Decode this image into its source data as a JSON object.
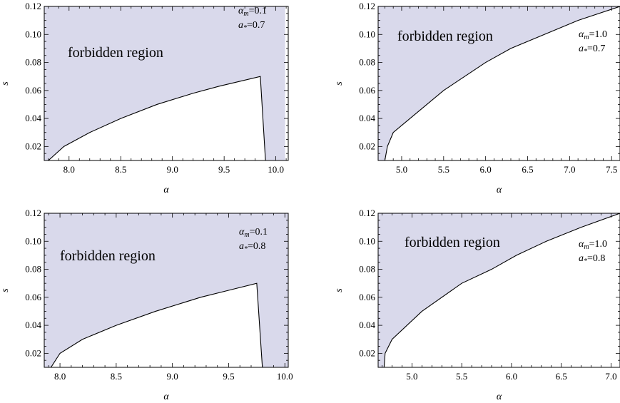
{
  "chart_data": [
    {
      "type": "area",
      "title": "",
      "xlabel": "α",
      "ylabel": "s",
      "xlim": [
        7.76,
        10.12
      ],
      "ylim": [
        0.01,
        0.12
      ],
      "x_ticks": [
        8.0,
        8.5,
        9.0,
        9.5,
        10.0
      ],
      "x_tick_labels": [
        "8.0",
        "8.5",
        "9.0",
        "9.5",
        "10.0"
      ],
      "y_ticks": [
        0.02,
        0.04,
        0.06,
        0.08,
        0.1,
        0.12
      ],
      "y_tick_labels": [
        "0.02",
        "0.04",
        "0.06",
        "0.08",
        "0.10",
        "0.12"
      ],
      "region_label": "forbidden region",
      "params": [
        "α_m=0.1",
        "a_*=0.7"
      ],
      "params_display": [
        {
          "sym": "α",
          "sub": "m",
          "val": "=0.1"
        },
        {
          "sym": "a",
          "sub": "*",
          "val": "=0.7"
        }
      ],
      "fill_color": "#d9d9eb",
      "boundary": {
        "x": [
          7.8,
          7.95,
          8.2,
          8.5,
          8.85,
          9.2,
          9.45,
          9.85,
          9.9
        ],
        "y": [
          0.01,
          0.02,
          0.03,
          0.04,
          0.05,
          0.058,
          0.063,
          0.07,
          0.01
        ]
      },
      "allowed_x_range": [
        7.8,
        9.9
      ],
      "grid": false,
      "legend": "none"
    },
    {
      "type": "area",
      "title": "",
      "xlabel": "α",
      "ylabel": "s",
      "xlim": [
        4.72,
        7.6
      ],
      "ylim": [
        0.01,
        0.12
      ],
      "x_ticks": [
        5.0,
        5.5,
        6.0,
        6.5,
        7.0,
        7.5
      ],
      "x_tick_labels": [
        "5.0",
        "5.5",
        "6.0",
        "6.5",
        "7.0",
        "7.5"
      ],
      "y_ticks": [
        0.02,
        0.04,
        0.06,
        0.08,
        0.1,
        0.12
      ],
      "y_tick_labels": [
        "0.02",
        "0.04",
        "0.06",
        "0.08",
        "0.10",
        "0.12"
      ],
      "region_label": "forbidden region",
      "params": [
        "α_m=1.0",
        "a_*=0.7"
      ],
      "params_display": [
        {
          "sym": "α",
          "sub": "m",
          "val": "=1.0"
        },
        {
          "sym": "a",
          "sub": "*",
          "val": "=0.7"
        }
      ],
      "fill_color": "#d9d9eb",
      "boundary": {
        "x": [
          4.8,
          4.83,
          4.9,
          5.1,
          5.3,
          5.5,
          5.75,
          6.0,
          6.3,
          6.7,
          7.1,
          7.6
        ],
        "y": [
          0.01,
          0.02,
          0.03,
          0.04,
          0.05,
          0.06,
          0.07,
          0.08,
          0.09,
          0.1,
          0.11,
          0.12
        ]
      },
      "allowed_x_range": [
        4.8,
        7.6
      ],
      "grid": false,
      "legend": "none"
    },
    {
      "type": "area",
      "title": "",
      "xlabel": "α",
      "ylabel": "s",
      "xlim": [
        7.86,
        10.03
      ],
      "ylim": [
        0.01,
        0.12
      ],
      "x_ticks": [
        8.0,
        8.5,
        9.0,
        9.5,
        10.0
      ],
      "x_tick_labels": [
        "8.0",
        "8.5",
        "9.0",
        "9.5",
        "10.0"
      ],
      "y_ticks": [
        0.02,
        0.04,
        0.06,
        0.08,
        0.1,
        0.12
      ],
      "y_tick_labels": [
        "0.02",
        "0.04",
        "0.06",
        "0.08",
        "0.10",
        "0.12"
      ],
      "region_label": "forbidden region",
      "params": [
        "α_m=0.1",
        "a_*=0.8"
      ],
      "params_display": [
        {
          "sym": "α",
          "sub": "m",
          "val": "=0.1"
        },
        {
          "sym": "a",
          "sub": "*",
          "val": "=0.8"
        }
      ],
      "fill_color": "#d9d9eb",
      "boundary": {
        "x": [
          7.92,
          8.0,
          8.2,
          8.5,
          8.85,
          9.25,
          9.5,
          9.75,
          9.8
        ],
        "y": [
          0.01,
          0.02,
          0.03,
          0.04,
          0.05,
          0.06,
          0.065,
          0.07,
          0.01
        ]
      },
      "allowed_x_range": [
        7.92,
        9.8
      ],
      "grid": false,
      "legend": "none"
    },
    {
      "type": "area",
      "title": "",
      "xlabel": "α",
      "ylabel": "s",
      "xlim": [
        4.66,
        7.09
      ],
      "ylim": [
        0.01,
        0.12
      ],
      "x_ticks": [
        5.0,
        5.5,
        6.0,
        6.5,
        7.0
      ],
      "x_tick_labels": [
        "5.0",
        "5.5",
        "6.0",
        "6.5",
        "7.0"
      ],
      "y_ticks": [
        0.02,
        0.04,
        0.06,
        0.08,
        0.1,
        0.12
      ],
      "y_tick_labels": [
        "0.02",
        "0.04",
        "0.06",
        "0.08",
        "0.10",
        "0.12"
      ],
      "region_label": "forbidden region",
      "params": [
        "α_m=1.0",
        "a_*=0.8"
      ],
      "params_display": [
        {
          "sym": "α",
          "sub": "m",
          "val": "=1.0"
        },
        {
          "sym": "a",
          "sub": "*",
          "val": "=0.8"
        }
      ],
      "fill_color": "#d9d9eb",
      "boundary": {
        "x": [
          4.72,
          4.73,
          4.8,
          5.1,
          5.5,
          5.8,
          6.05,
          6.35,
          6.7,
          7.09
        ],
        "y": [
          0.01,
          0.02,
          0.03,
          0.05,
          0.07,
          0.08,
          0.09,
          0.1,
          0.11,
          0.12
        ]
      },
      "allowed_x_range": [
        4.72,
        7.09
      ],
      "grid": false,
      "legend": "none"
    }
  ]
}
